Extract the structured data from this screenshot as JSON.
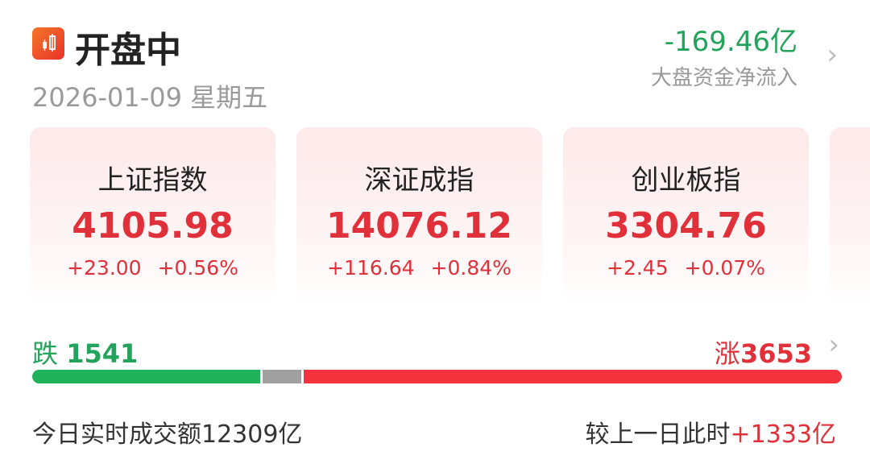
{
  "header": {
    "title": "开盘中",
    "date": "2026-01-09",
    "weekday": "星期五",
    "net_flow": "-169.46亿",
    "net_flow_label": "大盘资金净流入"
  },
  "indices": [
    {
      "name": "上证指数",
      "value": "4105.98",
      "change": "+23.00",
      "pct": "+0.56%"
    },
    {
      "name": "深证成指",
      "value": "14076.12",
      "change": "+116.64",
      "pct": "+0.84%"
    },
    {
      "name": "创业板指",
      "value": "3304.76",
      "change": "+2.45",
      "pct": "+0.07%"
    }
  ],
  "breadth": {
    "down_label": "跌",
    "down": "1541",
    "up_label": "涨",
    "up": "3653"
  },
  "volume": {
    "label": "今日实时成交额",
    "value": "12309亿",
    "compare_label": "较上一日此时",
    "compare_value": "+1333亿"
  },
  "colors": {
    "up": "#e0303a",
    "down": "#23a35b",
    "flat": "#a0a0a0"
  }
}
